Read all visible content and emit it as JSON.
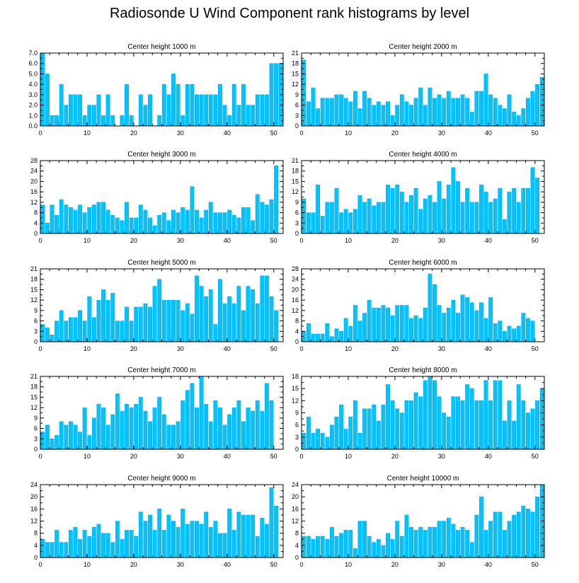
{
  "title": "Radiosonde U Wind Component rank histograms by level",
  "colors": {
    "bar": "#00C4FF",
    "bar_edge": "#0090D0",
    "axis": "#000000"
  },
  "chart_data": [
    {
      "type": "bar",
      "title": "Center height 1000 m",
      "x": [
        0,
        1,
        2,
        3,
        4,
        5,
        6,
        7,
        8,
        9,
        10,
        11,
        12,
        13,
        14,
        15,
        16,
        17,
        18,
        19,
        20,
        21,
        22,
        23,
        24,
        25,
        26,
        27,
        28,
        29,
        30,
        31,
        32,
        33,
        34,
        35,
        36,
        37,
        38,
        39,
        40,
        41,
        42,
        43,
        44,
        45,
        46,
        47,
        48,
        49,
        50,
        51
      ],
      "values": [
        7,
        5,
        1,
        1,
        4,
        2,
        3,
        3,
        3,
        1,
        2,
        2,
        3,
        1,
        3,
        1,
        0,
        1,
        4,
        1,
        0,
        3,
        2,
        3,
        0,
        1,
        4,
        3,
        5,
        4,
        1,
        4,
        4,
        3,
        3,
        3,
        3,
        3,
        4,
        2,
        1,
        4,
        2,
        4,
        2,
        2,
        3,
        3,
        3,
        6,
        6,
        6
      ],
      "xlim": [
        0,
        52
      ],
      "ylim": [
        0,
        7
      ],
      "yticks": [
        "0.0",
        "1.0",
        "2.0",
        "3.0",
        "4.0",
        "5.0",
        "6.0",
        "7.0"
      ],
      "xticks": [
        "0",
        "10",
        "20",
        "30",
        "40",
        "50"
      ]
    },
    {
      "type": "bar",
      "title": "Center height 2000 m",
      "x": [
        0,
        1,
        2,
        3,
        4,
        5,
        6,
        7,
        8,
        9,
        10,
        11,
        12,
        13,
        14,
        15,
        16,
        17,
        18,
        19,
        20,
        21,
        22,
        23,
        24,
        25,
        26,
        27,
        28,
        29,
        30,
        31,
        32,
        33,
        34,
        35,
        36,
        37,
        38,
        39,
        40,
        41,
        42,
        43,
        44,
        45,
        46,
        47,
        48,
        49,
        50,
        51
      ],
      "values": [
        19,
        7,
        11,
        5,
        8,
        8,
        8,
        9,
        9,
        8,
        7,
        10,
        5,
        10,
        8,
        6,
        7,
        6,
        7,
        3,
        6,
        9,
        7,
        6,
        8,
        11,
        6,
        11,
        8,
        9,
        8,
        10,
        8,
        8,
        9,
        8,
        4,
        10,
        10,
        15,
        9,
        8,
        6,
        5,
        9,
        4,
        3,
        5,
        8,
        10,
        12,
        14
      ],
      "xlim": [
        0,
        52
      ],
      "ylim": [
        0,
        21
      ],
      "yticks": [
        "0",
        "3",
        "6",
        "9",
        "12",
        "15",
        "18",
        "21"
      ],
      "xticks": [
        "0",
        "10",
        "20",
        "30",
        "40",
        "50"
      ]
    },
    {
      "type": "bar",
      "title": "Center height 3000 m",
      "x": [
        0,
        1,
        2,
        3,
        4,
        5,
        6,
        7,
        8,
        9,
        10,
        11,
        12,
        13,
        14,
        15,
        16,
        17,
        18,
        19,
        20,
        21,
        22,
        23,
        24,
        25,
        26,
        27,
        28,
        29,
        30,
        31,
        32,
        33,
        34,
        35,
        36,
        37,
        38,
        39,
        40,
        41,
        42,
        43,
        44,
        45,
        46,
        47,
        48,
        49,
        50,
        51
      ],
      "values": [
        11,
        4,
        11,
        7,
        13,
        11,
        10,
        9,
        11,
        8,
        10,
        11,
        12,
        12,
        9,
        7,
        6,
        5,
        12,
        6,
        6,
        11,
        9,
        6,
        3,
        7,
        8,
        5,
        9,
        8,
        10,
        9,
        18,
        9,
        6,
        9,
        12,
        8,
        8,
        8,
        9,
        7,
        6,
        10,
        10,
        5,
        15,
        12,
        11,
        13,
        26,
        0
      ],
      "xlim": [
        0,
        52
      ],
      "ylim": [
        0,
        28
      ],
      "yticks": [
        "0",
        "4",
        "8",
        "12",
        "16",
        "20",
        "24",
        "28"
      ],
      "xticks": [
        "0",
        "10",
        "20",
        "30",
        "40",
        "50"
      ]
    },
    {
      "type": "bar",
      "title": "Center height 4000 m",
      "x": [
        0,
        1,
        2,
        3,
        4,
        5,
        6,
        7,
        8,
        9,
        10,
        11,
        12,
        13,
        14,
        15,
        16,
        17,
        18,
        19,
        20,
        21,
        22,
        23,
        24,
        25,
        26,
        27,
        28,
        29,
        30,
        31,
        32,
        33,
        34,
        35,
        36,
        37,
        38,
        39,
        40,
        41,
        42,
        43,
        44,
        45,
        46,
        47,
        48,
        49,
        50,
        51
      ],
      "values": [
        10,
        6,
        6,
        14,
        5,
        9,
        9,
        13,
        6,
        7,
        6,
        7,
        11,
        9,
        10,
        8,
        9,
        9,
        14,
        13,
        14,
        12,
        9,
        11,
        13,
        7,
        10,
        11,
        9,
        15,
        10,
        14,
        19,
        15,
        9,
        13,
        9,
        9,
        14,
        12,
        9,
        10,
        13,
        4,
        12,
        13,
        9,
        13,
        13,
        19,
        16,
        0
      ],
      "xlim": [
        0,
        52
      ],
      "ylim": [
        0,
        21
      ],
      "yticks": [
        "0",
        "3",
        "6",
        "9",
        "12",
        "15",
        "18",
        "21"
      ],
      "xticks": [
        "0",
        "10",
        "20",
        "30",
        "40",
        "50"
      ]
    },
    {
      "type": "bar",
      "title": "Center height 5000 m",
      "x": [
        0,
        1,
        2,
        3,
        4,
        5,
        6,
        7,
        8,
        9,
        10,
        11,
        12,
        13,
        14,
        15,
        16,
        17,
        18,
        19,
        20,
        21,
        22,
        23,
        24,
        25,
        26,
        27,
        28,
        29,
        30,
        31,
        32,
        33,
        34,
        35,
        36,
        37,
        38,
        39,
        40,
        41,
        42,
        43,
        44,
        45,
        46,
        47,
        48,
        49,
        50,
        51
      ],
      "values": [
        5,
        4,
        2,
        6,
        9,
        6,
        7,
        7,
        9,
        6,
        13,
        7,
        12,
        15,
        12,
        14,
        6,
        6,
        10,
        6,
        10,
        10,
        11,
        10,
        16,
        18,
        12,
        12,
        12,
        12,
        9,
        11,
        8,
        19,
        16,
        13,
        15,
        5,
        18,
        11,
        13,
        11,
        16,
        9,
        16,
        15,
        11,
        19,
        19,
        13,
        9,
        0
      ],
      "xlim": [
        0,
        52
      ],
      "ylim": [
        0,
        21
      ],
      "yticks": [
        "0",
        "3",
        "6",
        "9",
        "12",
        "15",
        "18",
        "21"
      ],
      "xticks": [
        "0",
        "10",
        "20",
        "30",
        "40",
        "50"
      ]
    },
    {
      "type": "bar",
      "title": "Center height 6000 m",
      "x": [
        0,
        1,
        2,
        3,
        4,
        5,
        6,
        7,
        8,
        9,
        10,
        11,
        12,
        13,
        14,
        15,
        16,
        17,
        18,
        19,
        20,
        21,
        22,
        23,
        24,
        25,
        26,
        27,
        28,
        29,
        30,
        31,
        32,
        33,
        34,
        35,
        36,
        37,
        38,
        39,
        40,
        41,
        42,
        43,
        44,
        45,
        46,
        47,
        48,
        49,
        50,
        51
      ],
      "values": [
        4,
        7,
        3,
        3,
        3,
        7,
        2,
        5,
        4,
        9,
        6,
        14,
        8,
        11,
        16,
        13,
        13,
        14,
        13,
        10,
        14,
        14,
        14,
        9,
        10,
        9,
        13,
        26,
        22,
        14,
        11,
        13,
        16,
        11,
        18,
        17,
        15,
        12,
        15,
        9,
        17,
        7,
        8,
        4,
        6,
        5,
        6,
        11,
        9,
        8,
        0,
        0
      ],
      "xlim": [
        0,
        52
      ],
      "ylim": [
        0,
        28
      ],
      "yticks": [
        "0",
        "4",
        "8",
        "12",
        "16",
        "20",
        "24",
        "28"
      ],
      "xticks": [
        "0",
        "10",
        "20",
        "30",
        "40",
        "50"
      ]
    },
    {
      "type": "bar",
      "title": "Center height 7000 m",
      "x": [
        0,
        1,
        2,
        3,
        4,
        5,
        6,
        7,
        8,
        9,
        10,
        11,
        12,
        13,
        14,
        15,
        16,
        17,
        18,
        19,
        20,
        21,
        22,
        23,
        24,
        25,
        26,
        27,
        28,
        29,
        30,
        31,
        32,
        33,
        34,
        35,
        36,
        37,
        38,
        39,
        40,
        41,
        42,
        43,
        44,
        45,
        46,
        47,
        48,
        49,
        50,
        51
      ],
      "values": [
        5,
        7,
        3,
        4,
        8,
        7,
        8,
        7,
        5,
        12,
        4,
        9,
        13,
        12,
        7,
        10,
        16,
        11,
        13,
        12,
        13,
        15,
        11,
        8,
        12,
        15,
        10,
        7,
        7,
        8,
        14,
        17,
        19,
        12,
        21,
        13,
        8,
        14,
        12,
        7,
        10,
        12,
        14,
        8,
        12,
        11,
        14,
        11,
        19,
        14,
        0,
        0
      ],
      "xlim": [
        0,
        52
      ],
      "ylim": [
        0,
        21
      ],
      "yticks": [
        "0",
        "3",
        "6",
        "9",
        "12",
        "15",
        "18",
        "21"
      ],
      "xticks": [
        "0",
        "10",
        "20",
        "30",
        "40",
        "50"
      ]
    },
    {
      "type": "bar",
      "title": "Center height 8000 m",
      "x": [
        0,
        1,
        2,
        3,
        4,
        5,
        6,
        7,
        8,
        9,
        10,
        11,
        12,
        13,
        14,
        15,
        16,
        17,
        18,
        19,
        20,
        21,
        22,
        23,
        24,
        25,
        26,
        27,
        28,
        29,
        30,
        31,
        32,
        33,
        34,
        35,
        36,
        37,
        38,
        39,
        40,
        41,
        42,
        43,
        44,
        45,
        46,
        47,
        48,
        49,
        50,
        51
      ],
      "values": [
        4,
        8,
        4,
        5,
        4,
        3,
        6,
        8,
        11,
        5,
        8,
        12,
        4,
        10,
        10,
        11,
        7,
        11,
        16,
        12,
        10,
        9,
        12,
        12,
        14,
        13,
        17,
        18,
        17,
        13,
        9,
        8,
        13,
        13,
        12,
        16,
        15,
        12,
        12,
        17,
        12,
        17,
        17,
        7,
        12,
        7,
        16,
        12,
        9,
        10,
        12,
        15
      ],
      "xlim": [
        0,
        52
      ],
      "ylim": [
        0,
        18
      ],
      "yticks": [
        "0",
        "3",
        "6",
        "9",
        "12",
        "15",
        "18"
      ],
      "xticks": [
        "0",
        "10",
        "20",
        "30",
        "40",
        "50"
      ]
    },
    {
      "type": "bar",
      "title": "Center height 9000 m",
      "x": [
        0,
        1,
        2,
        3,
        4,
        5,
        6,
        7,
        8,
        9,
        10,
        11,
        12,
        13,
        14,
        15,
        16,
        17,
        18,
        19,
        20,
        21,
        22,
        23,
        24,
        25,
        26,
        27,
        28,
        29,
        30,
        31,
        32,
        33,
        34,
        35,
        36,
        37,
        38,
        39,
        40,
        41,
        42,
        43,
        44,
        45,
        46,
        47,
        48,
        49,
        50,
        51
      ],
      "values": [
        6,
        5,
        5,
        9,
        5,
        5,
        9,
        10,
        6,
        9,
        7,
        10,
        11,
        8,
        8,
        5,
        12,
        6,
        9,
        9,
        7,
        15,
        12,
        14,
        9,
        16,
        9,
        14,
        12,
        10,
        16,
        11,
        12,
        12,
        11,
        15,
        10,
        12,
        8,
        8,
        16,
        9,
        15,
        14,
        14,
        14,
        7,
        13,
        11,
        23,
        17,
        0
      ],
      "xlim": [
        0,
        52
      ],
      "ylim": [
        0,
        24
      ],
      "yticks": [
        "0",
        "4",
        "8",
        "12",
        "16",
        "20",
        "24"
      ],
      "xticks": [
        "0",
        "10",
        "20",
        "30",
        "40",
        "50"
      ]
    },
    {
      "type": "bar",
      "title": "Center height 10000 m",
      "x": [
        0,
        1,
        2,
        3,
        4,
        5,
        6,
        7,
        8,
        9,
        10,
        11,
        12,
        13,
        14,
        15,
        16,
        17,
        18,
        19,
        20,
        21,
        22,
        23,
        24,
        25,
        26,
        27,
        28,
        29,
        30,
        31,
        32,
        33,
        34,
        35,
        36,
        37,
        38,
        39,
        40,
        41,
        42,
        43,
        44,
        45,
        46,
        47,
        48,
        49,
        50,
        51
      ],
      "values": [
        7,
        7,
        6,
        7,
        7,
        6,
        10,
        7,
        8,
        9,
        9,
        3,
        12,
        12,
        7,
        5,
        6,
        4,
        8,
        6,
        12,
        7,
        14,
        10,
        9,
        10,
        9,
        10,
        10,
        12,
        12,
        13,
        11,
        9,
        10,
        9,
        5,
        14,
        20,
        9,
        12,
        15,
        15,
        9,
        12,
        14,
        15,
        17,
        16,
        15,
        20,
        24
      ],
      "xlim": [
        0,
        52
      ],
      "ylim": [
        0,
        24
      ],
      "yticks": [
        "0",
        "4",
        "8",
        "12",
        "16",
        "20",
        "24"
      ],
      "xticks": [
        "0",
        "10",
        "20",
        "30",
        "40",
        "50"
      ]
    }
  ]
}
